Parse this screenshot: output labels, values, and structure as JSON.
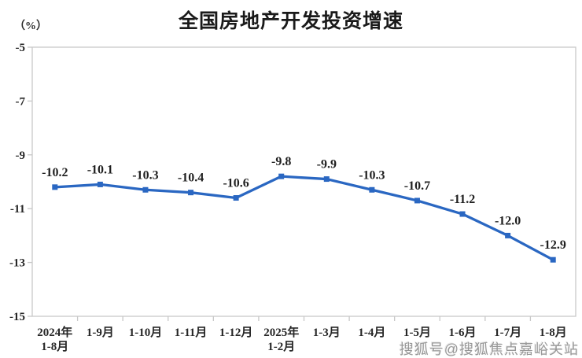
{
  "title": "全国房地产开发投资增速",
  "unit_label": "（%）",
  "watermark": "搜狐号@搜狐焦点嘉峪关站",
  "chart_data": {
    "type": "line",
    "title": "全国房地产开发投资增速",
    "ylabel": "（%）",
    "categories": [
      [
        "2024年",
        "1-8月"
      ],
      "1-9月",
      "1-10月",
      "1-11月",
      "1-12月",
      [
        "2025年",
        "1-2月"
      ],
      "1-3月",
      "1-4月",
      "1-5月",
      "1-6月",
      "1-7月",
      "1-8月"
    ],
    "values": [
      -10.2,
      -10.1,
      -10.3,
      -10.4,
      -10.6,
      -9.8,
      -9.9,
      -10.3,
      -10.7,
      -11.2,
      -12.0,
      -12.9
    ],
    "data_labels": [
      "-10.2",
      "-10.1",
      "-10.3",
      "-10.4",
      "-10.6",
      "-9.8",
      "-9.9",
      "-10.3",
      "-10.7",
      "-11.2",
      "-12.0",
      "-12.9"
    ],
    "ylim": [
      -15,
      -5
    ],
    "yticks": [
      -5,
      -7,
      -9,
      -11,
      -13,
      -15
    ],
    "grid": false,
    "legend": "none",
    "marker": "square",
    "line_color": "#2a67c2",
    "axis_color": "#c8c8c8",
    "text_color": "#262626"
  }
}
